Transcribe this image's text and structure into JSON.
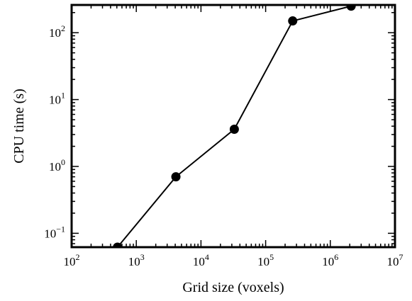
{
  "chart_data": {
    "type": "line",
    "xlabel": "Grid size (voxels)",
    "ylabel": "CPU time (s)",
    "xscale": "log",
    "yscale": "log",
    "xlim": [
      100,
      10000000
    ],
    "ylim": [
      0.062,
      260
    ],
    "grid": false,
    "x_ticks": [
      {
        "value": 100,
        "base": "10",
        "exp": "2"
      },
      {
        "value": 1000,
        "base": "10",
        "exp": "3"
      },
      {
        "value": 10000,
        "base": "10",
        "exp": "4"
      },
      {
        "value": 100000,
        "base": "10",
        "exp": "5"
      },
      {
        "value": 1000000,
        "base": "10",
        "exp": "6"
      },
      {
        "value": 10000000,
        "base": "10",
        "exp": "7"
      }
    ],
    "y_ticks": [
      {
        "value": 0.1,
        "base": "10",
        "exp": "−1"
      },
      {
        "value": 1,
        "base": "10",
        "exp": "0"
      },
      {
        "value": 10,
        "base": "10",
        "exp": "1"
      },
      {
        "value": 100,
        "base": "10",
        "exp": "2"
      }
    ],
    "series": [
      {
        "color": "#000000",
        "marker": "circle",
        "points": [
          {
            "x": 512,
            "y": 0.062
          },
          {
            "x": 4096,
            "y": 0.7
          },
          {
            "x": 32768,
            "y": 3.6
          },
          {
            "x": 262144,
            "y": 150
          },
          {
            "x": 2097152,
            "y": 250
          }
        ]
      }
    ]
  }
}
